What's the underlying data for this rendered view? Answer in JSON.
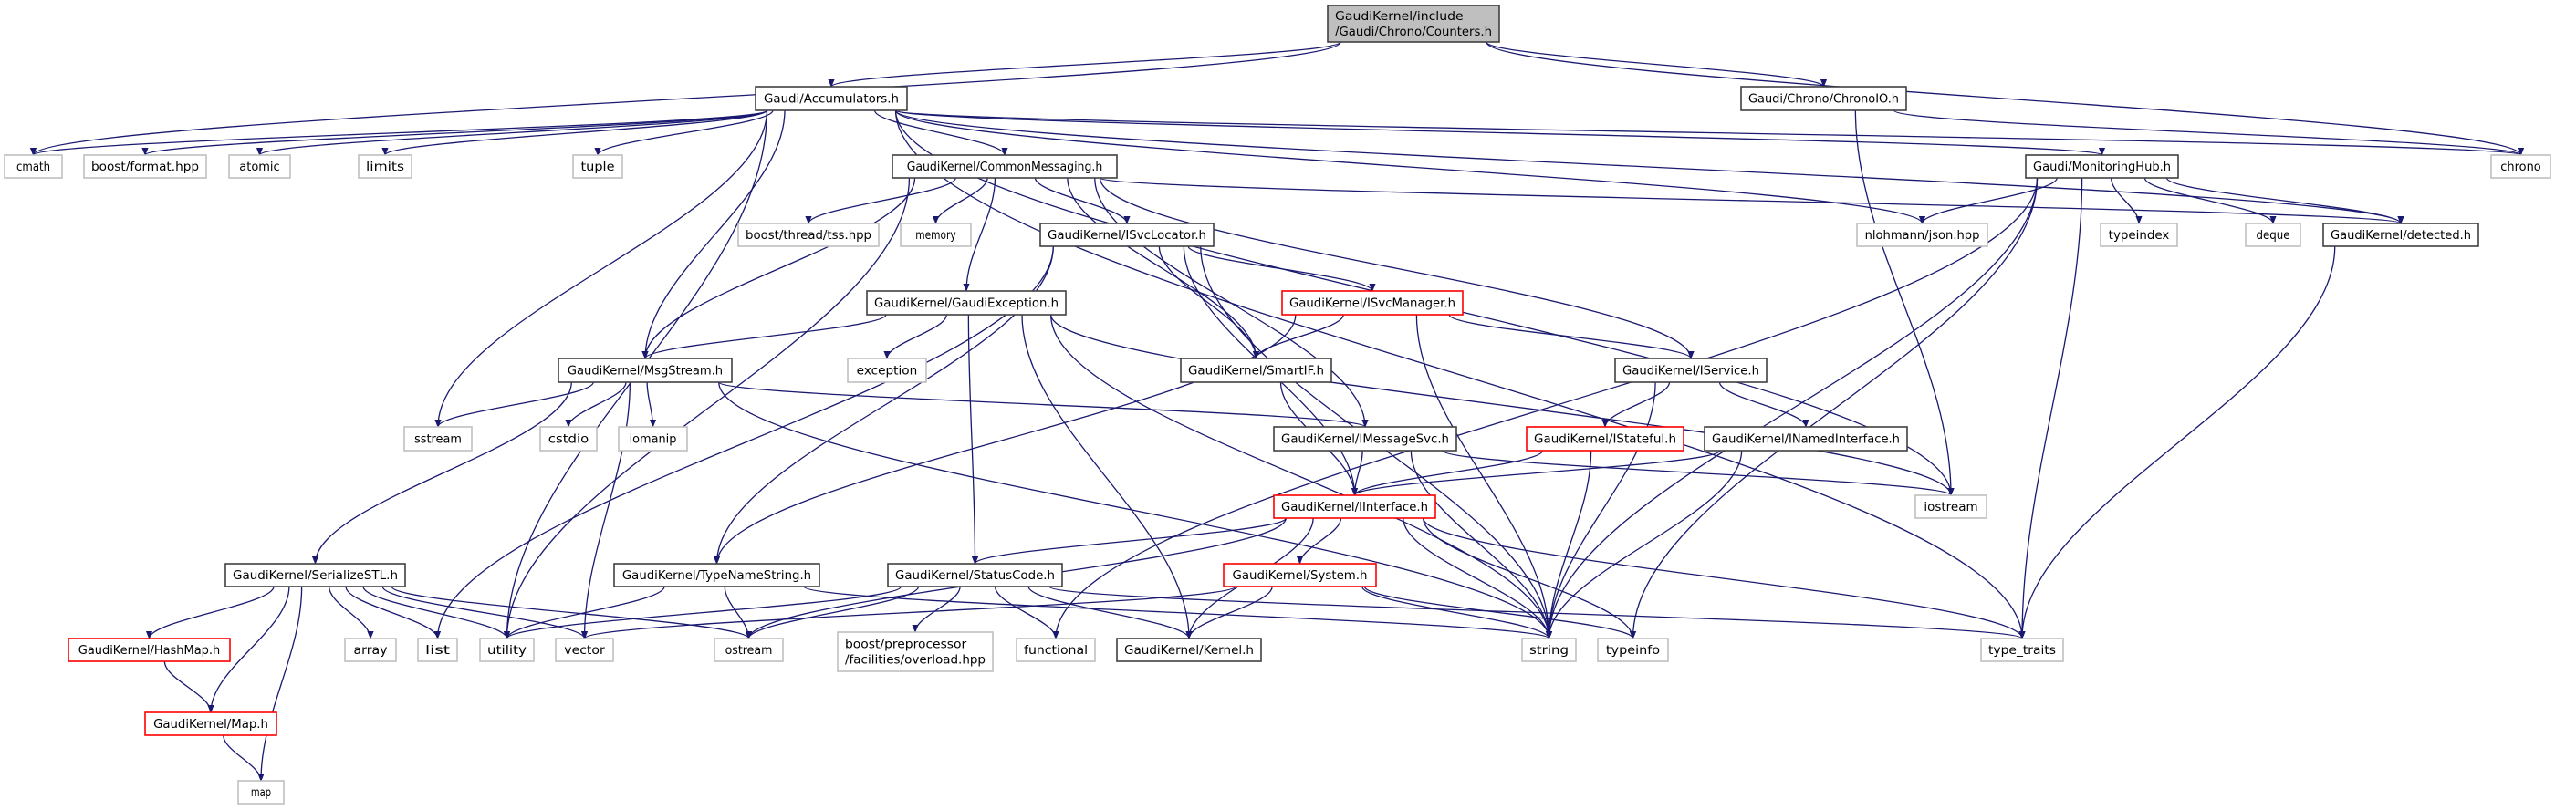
{
  "graph": {
    "colors": {
      "edge": "#191970",
      "root_fill": "#bfbfbf",
      "documented_border": "#404040",
      "external_border": "#bfbfbf",
      "truncated_border": "#ff0000"
    },
    "nodes": {
      "counters": {
        "label": [
          "GaudiKernel/include",
          "/Gaudi/Chrono/Counters.h"
        ],
        "kind": "root"
      },
      "accumulators": {
        "label": [
          "Gaudi/Accumulators.h"
        ],
        "kind": "documented"
      },
      "chronoio": {
        "label": [
          "Gaudi/Chrono/ChronoIO.h"
        ],
        "kind": "documented"
      },
      "cmath": {
        "label": [
          "cmath"
        ],
        "kind": "external"
      },
      "boost_format": {
        "label": [
          "boost/format.hpp"
        ],
        "kind": "external"
      },
      "atomic": {
        "label": [
          "atomic"
        ],
        "kind": "external"
      },
      "limits": {
        "label": [
          "limits"
        ],
        "kind": "external"
      },
      "tuple": {
        "label": [
          "tuple"
        ],
        "kind": "external"
      },
      "commonmessaging": {
        "label": [
          "GaudiKernel/CommonMessaging.h"
        ],
        "kind": "documented"
      },
      "monitoringhub": {
        "label": [
          "Gaudi/MonitoringHub.h"
        ],
        "kind": "documented"
      },
      "chrono": {
        "label": [
          "chrono"
        ],
        "kind": "external"
      },
      "boost_tss": {
        "label": [
          "boost/thread/tss.hpp"
        ],
        "kind": "external"
      },
      "memory": {
        "label": [
          "memory"
        ],
        "kind": "external"
      },
      "isvclocator": {
        "label": [
          "GaudiKernel/ISvcLocator.h"
        ],
        "kind": "documented"
      },
      "nlohmann": {
        "label": [
          "nlohmann/json.hpp"
        ],
        "kind": "external"
      },
      "typeindex": {
        "label": [
          "typeindex"
        ],
        "kind": "external"
      },
      "deque": {
        "label": [
          "deque"
        ],
        "kind": "external"
      },
      "detected": {
        "label": [
          "GaudiKernel/detected.h"
        ],
        "kind": "documented"
      },
      "gaudiexception": {
        "label": [
          "GaudiKernel/GaudiException.h"
        ],
        "kind": "documented"
      },
      "isvcmanager": {
        "label": [
          "GaudiKernel/ISvcManager.h"
        ],
        "kind": "truncated"
      },
      "msgstream": {
        "label": [
          "GaudiKernel/MsgStream.h"
        ],
        "kind": "documented"
      },
      "exception": {
        "label": [
          "exception"
        ],
        "kind": "external"
      },
      "smartif": {
        "label": [
          "GaudiKernel/SmartIF.h"
        ],
        "kind": "documented"
      },
      "iservice": {
        "label": [
          "GaudiKernel/IService.h"
        ],
        "kind": "documented"
      },
      "sstream": {
        "label": [
          "sstream"
        ],
        "kind": "external"
      },
      "cstdio": {
        "label": [
          "cstdio"
        ],
        "kind": "external"
      },
      "iomanip": {
        "label": [
          "iomanip"
        ],
        "kind": "external"
      },
      "imessagesvc": {
        "label": [
          "GaudiKernel/IMessageSvc.h"
        ],
        "kind": "documented"
      },
      "istateful": {
        "label": [
          "GaudiKernel/IStateful.h"
        ],
        "kind": "truncated"
      },
      "inamedinterface": {
        "label": [
          "GaudiKernel/INamedInterface.h"
        ],
        "kind": "documented"
      },
      "iinterface": {
        "label": [
          "GaudiKernel/IInterface.h"
        ],
        "kind": "truncated"
      },
      "iostream": {
        "label": [
          "iostream"
        ],
        "kind": "external"
      },
      "serializestl": {
        "label": [
          "GaudiKernel/SerializeSTL.h"
        ],
        "kind": "documented"
      },
      "typenamestring": {
        "label": [
          "GaudiKernel/TypeNameString.h"
        ],
        "kind": "documented"
      },
      "statuscode": {
        "label": [
          "GaudiKernel/StatusCode.h"
        ],
        "kind": "documented"
      },
      "system": {
        "label": [
          "GaudiKernel/System.h"
        ],
        "kind": "truncated"
      },
      "hashmap": {
        "label": [
          "GaudiKernel/HashMap.h"
        ],
        "kind": "truncated"
      },
      "array": {
        "label": [
          "array"
        ],
        "kind": "external"
      },
      "list": {
        "label": [
          "list"
        ],
        "kind": "external"
      },
      "utility": {
        "label": [
          "utility"
        ],
        "kind": "external"
      },
      "vector": {
        "label": [
          "vector"
        ],
        "kind": "external"
      },
      "ostream": {
        "label": [
          "ostream"
        ],
        "kind": "external"
      },
      "boost_pp": {
        "label": [
          "boost/preprocessor",
          "/facilities/overload.hpp"
        ],
        "kind": "external"
      },
      "functional": {
        "label": [
          "functional"
        ],
        "kind": "external"
      },
      "kernel": {
        "label": [
          "GaudiKernel/Kernel.h"
        ],
        "kind": "documented"
      },
      "string": {
        "label": [
          "string"
        ],
        "kind": "external"
      },
      "typeinfo": {
        "label": [
          "typeinfo"
        ],
        "kind": "external"
      },
      "type_traits": {
        "label": [
          "type_traits"
        ],
        "kind": "external"
      },
      "map_h": {
        "label": [
          "GaudiKernel/Map.h"
        ],
        "kind": "truncated"
      },
      "map": {
        "label": [
          "map"
        ],
        "kind": "external"
      }
    },
    "edges": [
      [
        "counters",
        "accumulators"
      ],
      [
        "counters",
        "chronoio"
      ],
      [
        "counters",
        "cmath"
      ],
      [
        "counters",
        "chrono"
      ],
      [
        "accumulators",
        "cmath"
      ],
      [
        "accumulators",
        "boost_format"
      ],
      [
        "accumulators",
        "atomic"
      ],
      [
        "accumulators",
        "limits"
      ],
      [
        "accumulators",
        "tuple"
      ],
      [
        "accumulators",
        "sstream"
      ],
      [
        "accumulators",
        "utility"
      ],
      [
        "accumulators",
        "msgstream"
      ],
      [
        "accumulators",
        "commonmessaging"
      ],
      [
        "accumulators",
        "monitoringhub"
      ],
      [
        "accumulators",
        "chrono"
      ],
      [
        "accumulators",
        "detected"
      ],
      [
        "accumulators",
        "nlohmann"
      ],
      [
        "accumulators",
        "type_traits"
      ],
      [
        "accumulators",
        "iostream"
      ],
      [
        "chronoio",
        "chrono"
      ],
      [
        "chronoio",
        "iostream"
      ],
      [
        "commonmessaging",
        "boost_tss"
      ],
      [
        "commonmessaging",
        "memory"
      ],
      [
        "commonmessaging",
        "isvclocator"
      ],
      [
        "commonmessaging",
        "gaudiexception"
      ],
      [
        "commonmessaging",
        "msgstream"
      ],
      [
        "commonmessaging",
        "smartif"
      ],
      [
        "commonmessaging",
        "imessagesvc"
      ],
      [
        "commonmessaging",
        "iservice"
      ],
      [
        "commonmessaging",
        "detected"
      ],
      [
        "commonmessaging",
        "utility"
      ],
      [
        "monitoringhub",
        "nlohmann"
      ],
      [
        "monitoringhub",
        "typeindex"
      ],
      [
        "monitoringhub",
        "deque"
      ],
      [
        "monitoringhub",
        "detected"
      ],
      [
        "monitoringhub",
        "functional"
      ],
      [
        "monitoringhub",
        "typeinfo"
      ],
      [
        "monitoringhub",
        "type_traits"
      ],
      [
        "monitoringhub",
        "string"
      ],
      [
        "detected",
        "type_traits"
      ],
      [
        "isvclocator",
        "typenamestring"
      ],
      [
        "isvclocator",
        "list"
      ],
      [
        "isvclocator",
        "smartif"
      ],
      [
        "isvclocator",
        "isvcmanager"
      ],
      [
        "isvclocator",
        "iinterface"
      ],
      [
        "isvclocator",
        "string"
      ],
      [
        "gaudiexception",
        "msgstream"
      ],
      [
        "gaudiexception",
        "exception"
      ],
      [
        "gaudiexception",
        "statuscode"
      ],
      [
        "gaudiexception",
        "kernel"
      ],
      [
        "gaudiexception",
        "string"
      ],
      [
        "gaudiexception",
        "iostream"
      ],
      [
        "isvcmanager",
        "smartif"
      ],
      [
        "isvcmanager",
        "iservice"
      ],
      [
        "isvcmanager",
        "string"
      ],
      [
        "isvcmanager",
        "typenamestring"
      ],
      [
        "msgstream",
        "sstream"
      ],
      [
        "msgstream",
        "cstdio"
      ],
      [
        "msgstream",
        "iomanip"
      ],
      [
        "msgstream",
        "serializestl"
      ],
      [
        "msgstream",
        "vector"
      ],
      [
        "msgstream",
        "string"
      ],
      [
        "msgstream",
        "imessagesvc"
      ],
      [
        "smartif",
        "iinterface"
      ],
      [
        "iservice",
        "istateful"
      ],
      [
        "iservice",
        "inamedinterface"
      ],
      [
        "iservice",
        "string"
      ],
      [
        "imessagesvc",
        "iinterface"
      ],
      [
        "imessagesvc",
        "string"
      ],
      [
        "imessagesvc",
        "iostream"
      ],
      [
        "istateful",
        "iinterface"
      ],
      [
        "istateful",
        "string"
      ],
      [
        "inamedinterface",
        "iinterface"
      ],
      [
        "inamedinterface",
        "string"
      ],
      [
        "iinterface",
        "statuscode"
      ],
      [
        "iinterface",
        "system"
      ],
      [
        "iinterface",
        "kernel"
      ],
      [
        "iinterface",
        "ostream"
      ],
      [
        "iinterface",
        "string"
      ],
      [
        "iinterface",
        "typeinfo"
      ],
      [
        "iinterface",
        "type_traits"
      ],
      [
        "serializestl",
        "hashmap"
      ],
      [
        "serializestl",
        "map_h"
      ],
      [
        "serializestl",
        "map"
      ],
      [
        "serializestl",
        "array"
      ],
      [
        "serializestl",
        "list"
      ],
      [
        "serializestl",
        "utility"
      ],
      [
        "serializestl",
        "vector"
      ],
      [
        "serializestl",
        "ostream"
      ],
      [
        "typenamestring",
        "utility"
      ],
      [
        "typenamestring",
        "ostream"
      ],
      [
        "typenamestring",
        "string"
      ],
      [
        "statuscode",
        "boost_pp"
      ],
      [
        "statuscode",
        "functional"
      ],
      [
        "statuscode",
        "kernel"
      ],
      [
        "statuscode",
        "ostream"
      ],
      [
        "statuscode",
        "utility"
      ],
      [
        "statuscode",
        "type_traits"
      ],
      [
        "system",
        "kernel"
      ],
      [
        "system",
        "string"
      ],
      [
        "system",
        "typeinfo"
      ],
      [
        "system",
        "vector"
      ],
      [
        "hashmap",
        "map_h"
      ],
      [
        "map_h",
        "map"
      ]
    ]
  }
}
